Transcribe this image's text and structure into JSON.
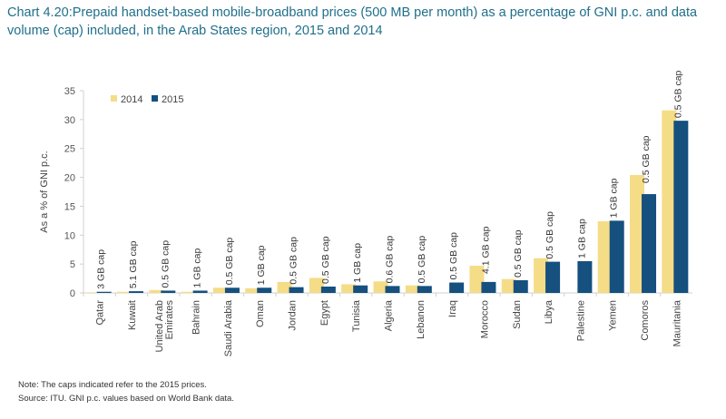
{
  "chart_data": {
    "type": "bar",
    "title": "Chart 4.20:Prepaid handset-based mobile-broadband prices (500 MB per month) as a percentage of GNI p.c. and data volume (cap) included, in the Arab States region, 2015 and 2014",
    "xlabel": "",
    "ylabel": "As a % of GNI p.c.",
    "ylim": [
      0,
      35
    ],
    "yticks": [
      "0",
      "5",
      "10",
      "15",
      "20",
      "25",
      "30",
      "35"
    ],
    "grid": false,
    "legend_position": "top-left",
    "categories": [
      "Qatar",
      "Kuwait",
      "United Arab Emirates",
      "Bahrain",
      "Saudi Arabia",
      "Oman",
      "Jordan",
      "Egypt",
      "Tunisia",
      "Algeria",
      "Lebanon",
      "Iraq",
      "Morocco",
      "Sudan",
      "Libya",
      "Palestine",
      "Yemen",
      "Comoros",
      "Mauritania"
    ],
    "series": [
      {
        "name": "2014",
        "color": "#f5dc86",
        "values": [
          0.1,
          0.2,
          0.5,
          0.2,
          0.9,
          0.8,
          1.9,
          2.6,
          1.5,
          2.0,
          1.3,
          0,
          4.7,
          2.4,
          6.0,
          0,
          12.4,
          20.4,
          31.6
        ]
      },
      {
        "name": "2015",
        "color": "#15507f",
        "values": [
          0.2,
          0.3,
          0.4,
          0.4,
          0.9,
          0.9,
          1.0,
          1.1,
          1.3,
          1.2,
          1.2,
          1.8,
          1.9,
          2.2,
          5.4,
          5.5,
          12.5,
          17.1,
          29.8
        ]
      }
    ],
    "annotations": [
      "3 GB cap",
      "5.1 GB cap",
      "0.5 GB cap",
      "1 GB cap",
      "0.5 GB cap",
      "1 GB cap",
      "0.5 GB cap",
      "0.5 GB cap",
      "1 GB cap",
      "0.6 GB cap",
      "0.5 GB cap",
      "0.5 GB cap",
      "4.1 GB cap",
      "0.5 GB cap",
      "0.5 GB cap",
      "1 GB cap",
      "1 GB cap",
      "0.5 GB cap",
      "0.5 GB cap"
    ]
  },
  "notes": {
    "note": "Note: The caps indicated refer to the 2015 prices.",
    "source": "Source: ITU. GNI p.c. values based on World Bank data."
  }
}
